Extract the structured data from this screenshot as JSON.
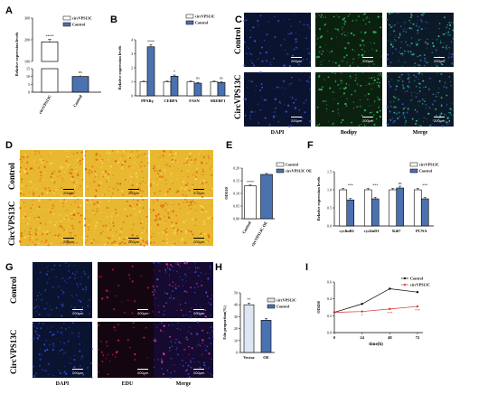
{
  "panel_letters": [
    "A",
    "B",
    "C",
    "D",
    "E",
    "F",
    "G",
    "H",
    "I"
  ],
  "scale_bar": "200μm",
  "panel_A": {
    "chart_data": {
      "type": "bar",
      "categories": [
        "circVPS13C",
        "Control"
      ],
      "values": [
        190,
        10
      ],
      "error": [
        12,
        1
      ],
      "significance": [
        "****",
        "ns"
      ],
      "ylabel": "Relative expression levels",
      "yticks": [
        "0",
        "5",
        "10",
        "15",
        "100",
        "200",
        "300"
      ],
      "broken_axis": true,
      "legend": [
        "circVPS13C",
        "Control"
      ],
      "legend_position": "top-right",
      "colors": [
        "#ffffff",
        "#4a72b0"
      ]
    }
  },
  "panel_B": {
    "chart_data": {
      "type": "bar",
      "categories": [
        "PPARγ",
        "CEBPA",
        "FASN",
        "SREBF1"
      ],
      "series": [
        {
          "name": "circVPS13C",
          "values": [
            1.0,
            1.0,
            1.0,
            1.0
          ],
          "error": [
            0.05,
            0.05,
            0.05,
            0.05
          ]
        },
        {
          "name": "Control",
          "values": [
            3.5,
            1.4,
            0.9,
            0.95
          ],
          "error": [
            0.15,
            0.08,
            0.05,
            0.05
          ]
        }
      ],
      "significance": [
        "****",
        "*",
        "ns",
        "ns"
      ],
      "ylabel": "Relative expression levels",
      "ylim": [
        0,
        4
      ],
      "yticks": [
        0,
        1,
        2,
        3,
        4
      ],
      "legend_position": "top-right",
      "colors": [
        "#ffffff",
        "#4a72b0"
      ]
    }
  },
  "panel_C": {
    "row_labels": [
      "Control",
      "CircVPS13C"
    ],
    "col_labels": [
      "DAPI",
      "Bodipy",
      "Merge"
    ]
  },
  "panel_D": {
    "row_labels": [
      "Control",
      "CircVPS13C"
    ]
  },
  "panel_E": {
    "chart_data": {
      "type": "bar",
      "categories": [
        "Control",
        "circVPS13C OE"
      ],
      "values": [
        0.13,
        0.175
      ],
      "error": [
        0.003,
        0.004
      ],
      "significance": [
        "****"
      ],
      "ylabel": "OD510",
      "ylim": [
        0,
        0.2
      ],
      "yticks": [
        "0.00",
        "0.05",
        "0.10",
        "0.15",
        "0.20"
      ],
      "legend": [
        "Control",
        "circVPS13C OE"
      ],
      "legend_position": "top-right",
      "colors": [
        "#ffffff",
        "#4a72b0"
      ]
    }
  },
  "panel_F": {
    "chart_data": {
      "type": "bar",
      "categories": [
        "cyclinB1",
        "cyclinD1",
        "Ki67",
        "PCNA"
      ],
      "series": [
        {
          "name": "circVPS13C",
          "values": [
            1.0,
            1.0,
            1.0,
            1.0
          ],
          "error": [
            0.04,
            0.04,
            0.04,
            0.04
          ]
        },
        {
          "name": "Control",
          "values": [
            0.72,
            0.75,
            1.05,
            0.75
          ],
          "error": [
            0.04,
            0.04,
            0.05,
            0.04
          ]
        }
      ],
      "significance": [
        "***",
        "***",
        "ns",
        "***"
      ],
      "ylabel": "Relative expression levels",
      "ylim": [
        0,
        1.5
      ],
      "yticks": [
        "0.0",
        "0.5",
        "1.0",
        "1.5"
      ],
      "legend_position": "top-right",
      "colors": [
        "#ffffff",
        "#4a72b0"
      ]
    }
  },
  "panel_G": {
    "row_labels": [
      "Control",
      "CircVPS13C"
    ],
    "col_labels": [
      "DAPI",
      "EDU",
      "Merge"
    ]
  },
  "panel_H": {
    "chart_data": {
      "type": "bar",
      "categories": [
        "Vector",
        "OE"
      ],
      "values": [
        40,
        27
      ],
      "error": [
        1.5,
        1.5
      ],
      "significance": [
        "**"
      ],
      "ylabel": "Edu proportion(%)",
      "ylim": [
        0,
        50
      ],
      "yticks": [
        0,
        10,
        20,
        30,
        40,
        50
      ],
      "legend": [
        "circVPS13C",
        "Control"
      ],
      "legend_position": "top-right",
      "colors": [
        "#dde6f2",
        "#4a72b0"
      ]
    }
  },
  "panel_I": {
    "chart_data": {
      "type": "line",
      "x": [
        0,
        24,
        48,
        72
      ],
      "series": [
        {
          "name": "Control",
          "values": [
            0.24,
            0.34,
            0.52,
            0.48
          ],
          "color": "#000000"
        },
        {
          "name": "circVPS13C",
          "values": [
            0.24,
            0.25,
            0.28,
            0.31
          ],
          "color": "#d93030"
        }
      ],
      "significance": [
        "",
        "*",
        "***",
        "***"
      ],
      "xlabel": "time(h)",
      "ylabel": "OD450",
      "xticks": [
        0,
        24,
        48,
        72
      ],
      "yticks": [
        "0.0",
        "0.2",
        "0.4",
        "0.6"
      ],
      "ylim": [
        0,
        0.6
      ],
      "legend_position": "top-right"
    }
  },
  "colors": {
    "bar_outline": "#000000",
    "blue": "#4a72b0",
    "red": "#d93030",
    "dapi": "#0a1330",
    "bodipy": "#0c2010",
    "edu": "#140610",
    "oil_red": "#e8b830"
  }
}
